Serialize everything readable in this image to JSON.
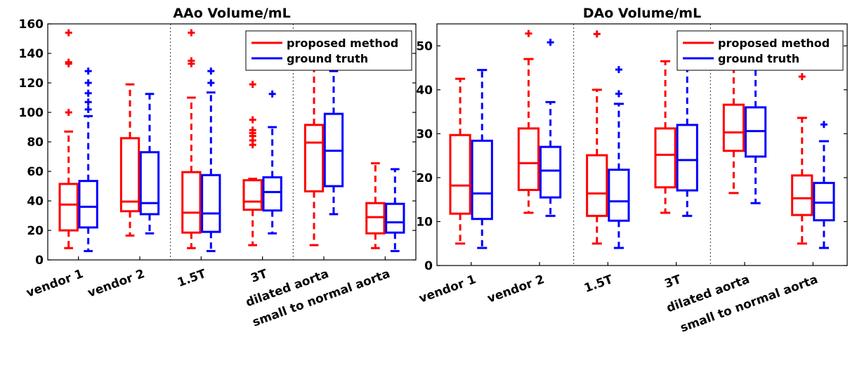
{
  "chart_data": [
    {
      "type": "box",
      "title": "AAo Volume/mL",
      "ylim": [
        0,
        160
      ],
      "yticks": [
        0,
        20,
        40,
        60,
        80,
        100,
        120,
        140,
        160
      ],
      "categories": [
        "vendor 1",
        "vendor 2",
        "1.5T",
        "3T",
        "dilated aorta",
        "small to normal aorta"
      ],
      "group_separators_after": [
        "vendor 2",
        "3T"
      ],
      "legend": {
        "position": "top-right",
        "entries": [
          "proposed method",
          "ground truth"
        ]
      },
      "series": [
        {
          "name": "proposed method",
          "color": "#ff0000",
          "boxes": [
            {
              "q1": 20,
              "median": 37.5,
              "q3": 51.5,
              "wlo": 8,
              "whi": 87,
              "outliers": [
                100,
                133,
                134,
                154
              ]
            },
            {
              "q1": 33,
              "median": 39.5,
              "q3": 82.5,
              "wlo": 16.5,
              "whi": 119,
              "outliers": []
            },
            {
              "q1": 18.5,
              "median": 32,
              "q3": 59.5,
              "wlo": 8,
              "whi": 110,
              "outliers": [
                133,
                135,
                154
              ]
            },
            {
              "q1": 34,
              "median": 39.5,
              "q3": 54,
              "wlo": 10,
              "whi": 55,
              "outliers": [
                78,
                81,
                84,
                86,
                88,
                95,
                119
              ]
            },
            {
              "q1": 46.5,
              "median": 79.5,
              "q3": 91.5,
              "wlo": 10,
              "whi": 133,
              "outliers": []
            },
            {
              "q1": 18,
              "median": 29,
              "q3": 38.5,
              "wlo": 8,
              "whi": 65.5,
              "outliers": []
            }
          ]
        },
        {
          "name": "ground truth",
          "color": "#0000ff",
          "boxes": [
            {
              "q1": 22,
              "median": 36,
              "q3": 53.5,
              "wlo": 6,
              "whi": 97.5,
              "outliers": [
                102,
                107,
                113,
                120,
                128
              ]
            },
            {
              "q1": 31,
              "median": 38.5,
              "q3": 73,
              "wlo": 18,
              "whi": 112.5,
              "outliers": []
            },
            {
              "q1": 19,
              "median": 31.5,
              "q3": 57.5,
              "wlo": 6,
              "whi": 113.5,
              "outliers": [
                120,
                128
              ]
            },
            {
              "q1": 33.5,
              "median": 46,
              "q3": 56,
              "wlo": 18,
              "whi": 90,
              "outliers": [
                112.5
              ]
            },
            {
              "q1": 50,
              "median": 74,
              "q3": 99,
              "wlo": 31,
              "whi": 128,
              "outliers": []
            },
            {
              "q1": 18.5,
              "median": 25.5,
              "q3": 38,
              "wlo": 6,
              "whi": 61.5,
              "outliers": []
            }
          ]
        }
      ]
    },
    {
      "type": "box",
      "title": "DAo Volume/mL",
      "ylim": [
        0,
        55
      ],
      "yticks": [
        0,
        10,
        20,
        30,
        40,
        50
      ],
      "categories": [
        "vendor 1",
        "vendor 2",
        "1.5T",
        "3T",
        "dilated aorta",
        "small to normal aorta"
      ],
      "group_separators_after": [
        "vendor 2",
        "3T"
      ],
      "legend": {
        "position": "top-right",
        "entries": [
          "proposed method",
          "ground truth"
        ]
      },
      "series": [
        {
          "name": "proposed method",
          "color": "#ff0000",
          "boxes": [
            {
              "q1": 11.8,
              "median": 18.2,
              "q3": 29.7,
              "wlo": 5,
              "whi": 42.5,
              "outliers": []
            },
            {
              "q1": 17.2,
              "median": 23.3,
              "q3": 31.2,
              "wlo": 12,
              "whi": 47,
              "outliers": [
                52.8
              ]
            },
            {
              "q1": 11.3,
              "median": 16.4,
              "q3": 25.1,
              "wlo": 5,
              "whi": 40,
              "outliers": [
                52.7
              ]
            },
            {
              "q1": 17.8,
              "median": 25.2,
              "q3": 31.2,
              "wlo": 12,
              "whi": 46.5,
              "outliers": []
            },
            {
              "q1": 26.1,
              "median": 30.3,
              "q3": 36.6,
              "wlo": 16.5,
              "whi": 53,
              "outliers": []
            },
            {
              "q1": 11.5,
              "median": 15.3,
              "q3": 20.5,
              "wlo": 5,
              "whi": 33.6,
              "outliers": [
                43
              ]
            }
          ]
        },
        {
          "name": "ground truth",
          "color": "#0000ff",
          "boxes": [
            {
              "q1": 10.6,
              "median": 16.4,
              "q3": 28.4,
              "wlo": 4,
              "whi": 44.5,
              "outliers": []
            },
            {
              "q1": 15.5,
              "median": 21.6,
              "q3": 27,
              "wlo": 11.3,
              "whi": 37.2,
              "outliers": [
                50.8
              ]
            },
            {
              "q1": 10.2,
              "median": 14.6,
              "q3": 21.8,
              "wlo": 4,
              "whi": 36.8,
              "outliers": [
                39.1,
                44.6
              ]
            },
            {
              "q1": 17.1,
              "median": 24,
              "q3": 32,
              "wlo": 11.3,
              "whi": 45.8,
              "outliers": []
            },
            {
              "q1": 24.8,
              "median": 30.6,
              "q3": 36,
              "wlo": 14.2,
              "whi": 46,
              "outliers": []
            },
            {
              "q1": 10.3,
              "median": 14.3,
              "q3": 18.8,
              "wlo": 4,
              "whi": 28.3,
              "outliers": [
                32.1
              ]
            }
          ]
        }
      ]
    }
  ]
}
